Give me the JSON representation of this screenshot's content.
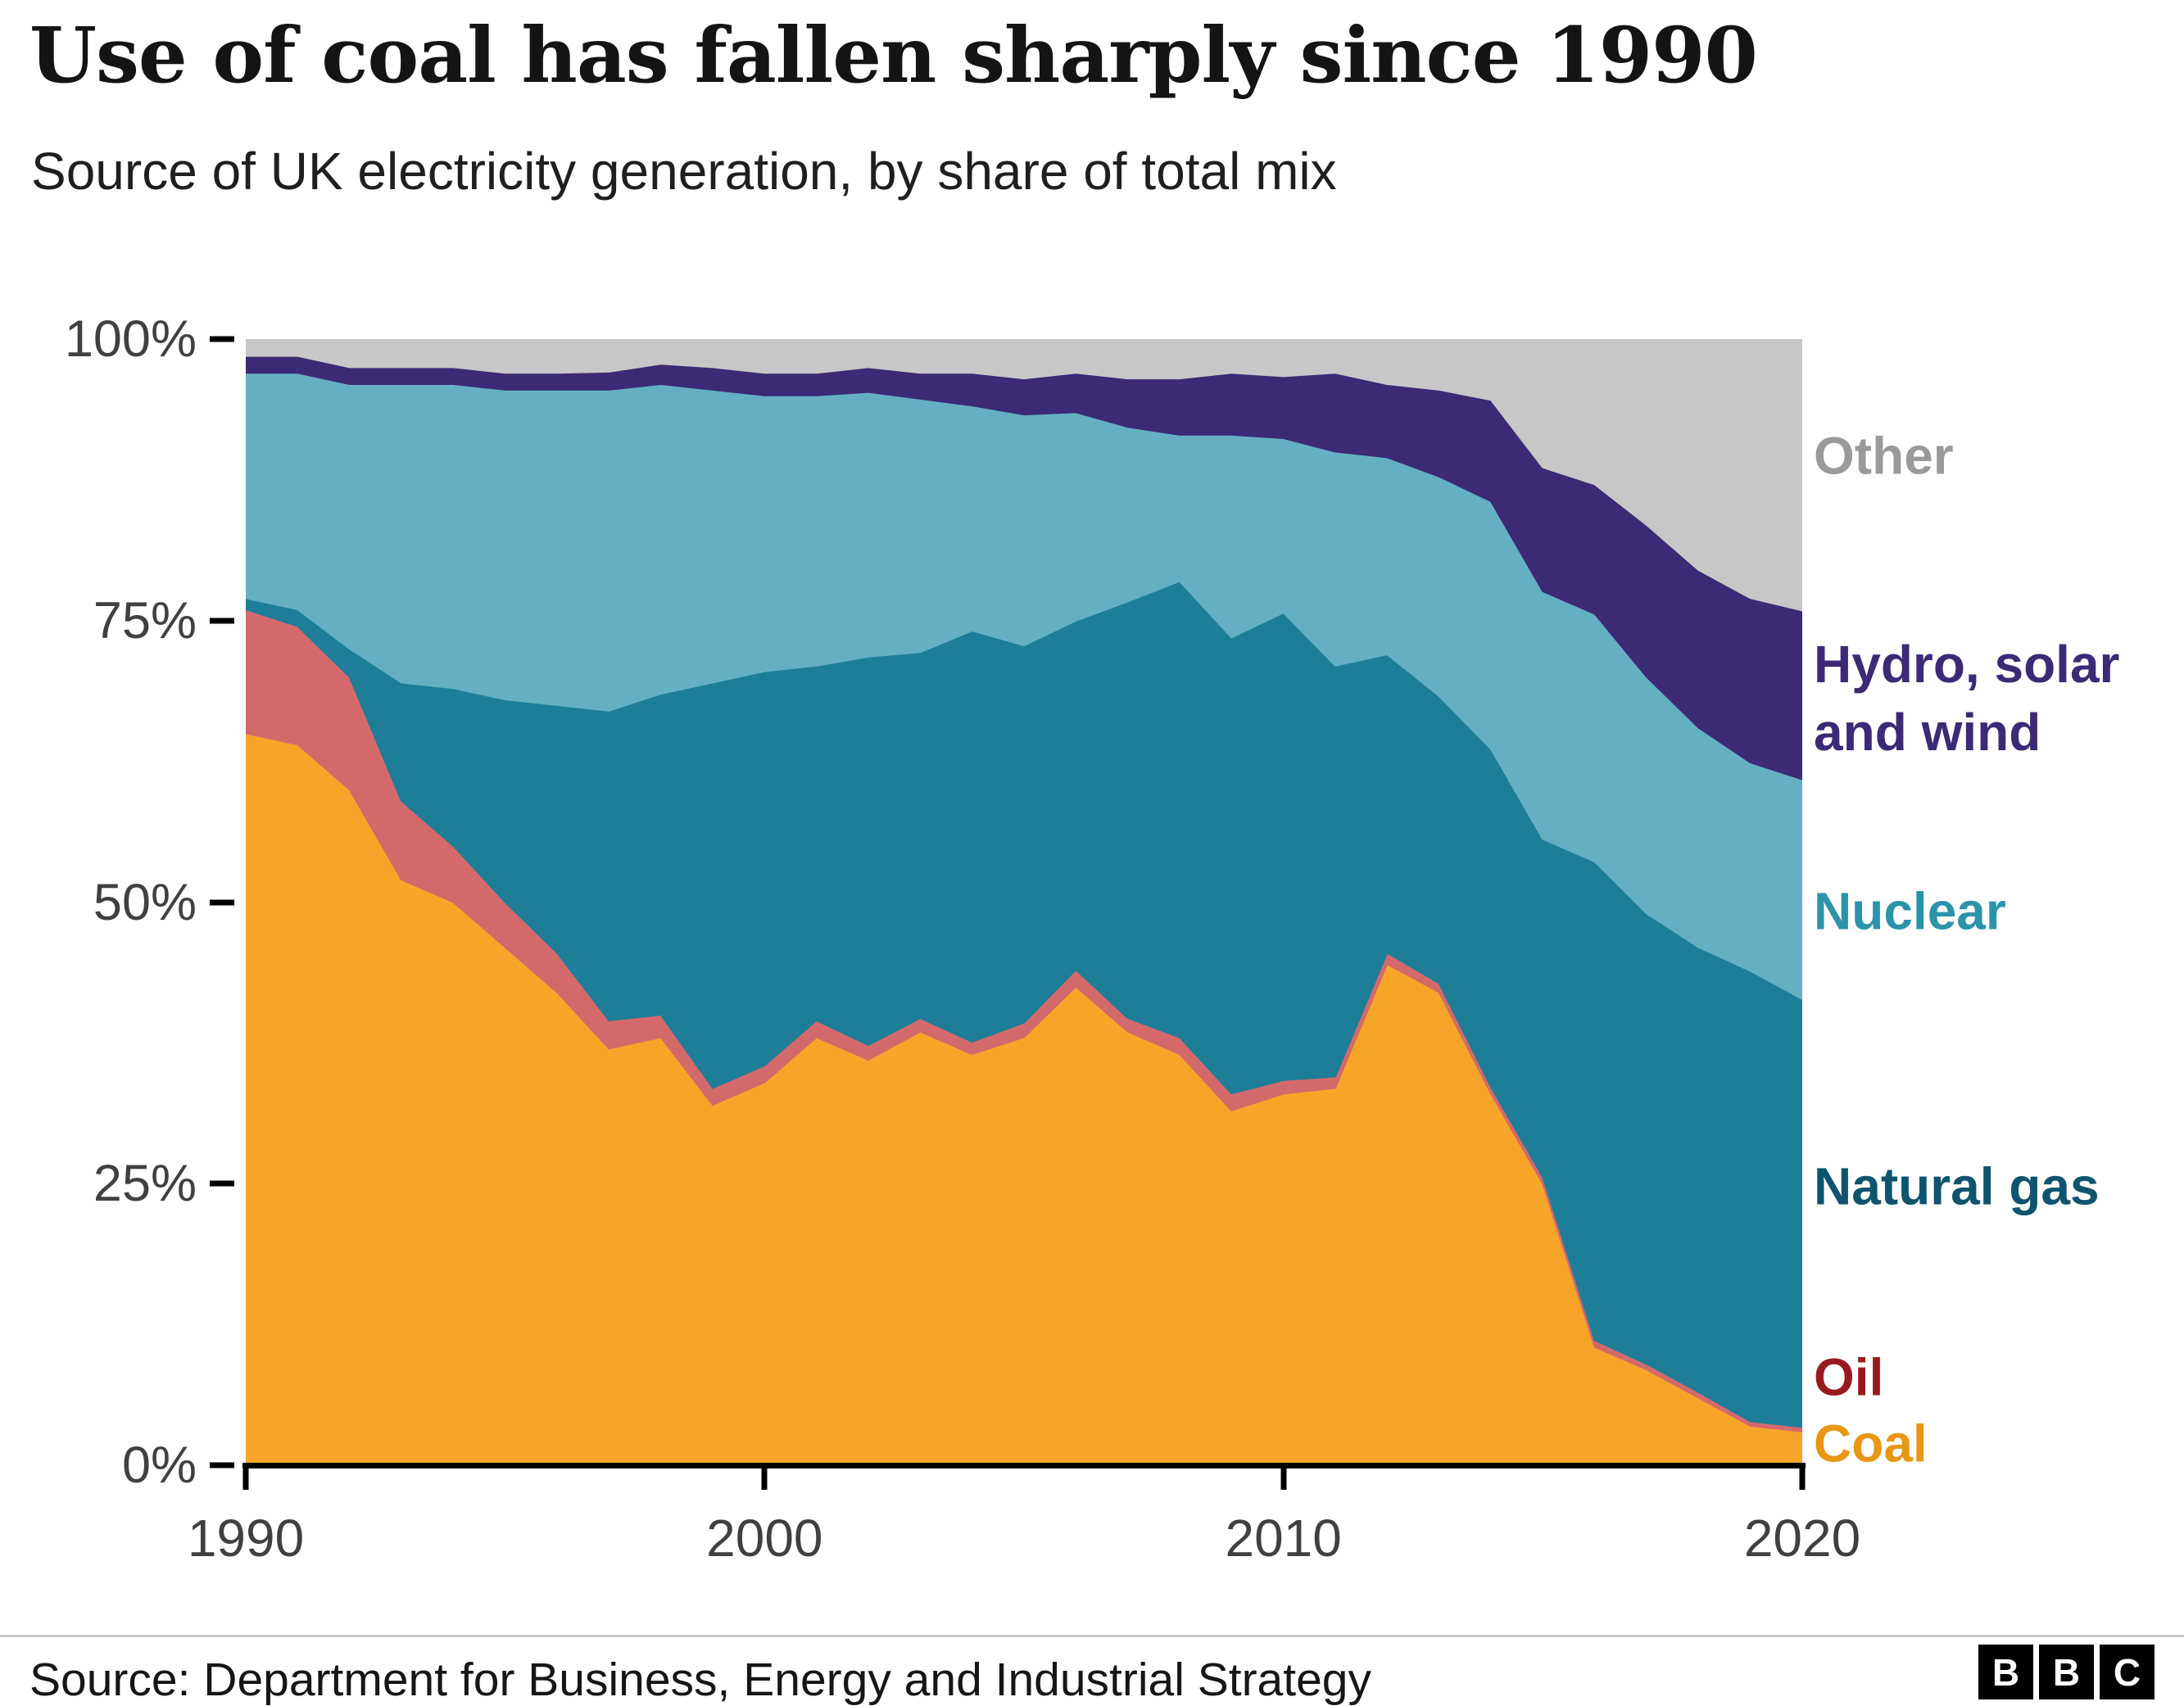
{
  "chart_data": {
    "type": "area",
    "stacked": true,
    "title": "Use of coal has fallen sharply since 1990",
    "subtitle": "Source of UK electricity generation, by share of total mix",
    "unit": "percent share of total mix",
    "xlabel": "",
    "ylabel": "",
    "grid": false,
    "legend_position": "right",
    "ylim": [
      0,
      100
    ],
    "yticks": [
      "0%",
      "25%",
      "50%",
      "75%",
      "100%"
    ],
    "xticks": [
      1990,
      2000,
      2010,
      2020
    ],
    "x": [
      1990,
      1991,
      1992,
      1993,
      1994,
      1995,
      1996,
      1997,
      1998,
      1999,
      2000,
      2001,
      2002,
      2003,
      2004,
      2005,
      2006,
      2007,
      2008,
      2009,
      2010,
      2011,
      2012,
      2013,
      2014,
      2015,
      2016,
      2017,
      2018,
      2019,
      2020
    ],
    "series": [
      {
        "name": "Coal",
        "color": "#F7A528",
        "label_color": "#E89614",
        "values": [
          65,
          64,
          60,
          52,
          50,
          46,
          42,
          37,
          38,
          32,
          34,
          38,
          36,
          38.5,
          36.5,
          38,
          42.5,
          38.5,
          36.5,
          31.5,
          33,
          33.5,
          44.5,
          42,
          33,
          25,
          10.5,
          8.5,
          6,
          3.5,
          3
        ]
      },
      {
        "name": "Oil",
        "color": "#D4696C",
        "label_color": "#991A1E",
        "values": [
          11,
          10.5,
          10,
          7,
          5,
          4,
          3.5,
          2.5,
          2,
          1.5,
          1.5,
          1.5,
          1.3,
          1.2,
          1.1,
          1.3,
          1.5,
          1.2,
          1.5,
          1.5,
          1.2,
          1,
          1,
          0.8,
          0.6,
          0.6,
          0.6,
          0.5,
          0.5,
          0.4,
          0.4
        ]
      },
      {
        "name": "Natural gas",
        "color": "#1E7E98",
        "label_color": "#0E546E",
        "values": [
          1,
          1.5,
          2.5,
          10.5,
          14,
          18,
          22,
          27.5,
          28.5,
          36,
          35,
          31.5,
          34.5,
          32.5,
          36.5,
          33.5,
          31,
          37,
          40.5,
          40.5,
          41.5,
          36.5,
          26.5,
          25.5,
          30,
          30,
          42.5,
          40,
          39.5,
          40,
          38
        ]
      },
      {
        "name": "Nuclear",
        "color": "#64B0C2",
        "label_color": "#2C93A9",
        "values": [
          20,
          21,
          23.5,
          26.5,
          27,
          27.5,
          28,
          28.5,
          27.5,
          26,
          24.5,
          24,
          23.5,
          22.5,
          20,
          20.5,
          18.5,
          15.5,
          13,
          18,
          15.5,
          19,
          17.5,
          19.5,
          22,
          22,
          22,
          21,
          19.5,
          18.5,
          19.5
        ]
      },
      {
        "name": "Hydro, solar and wind",
        "color": "#3C2A76",
        "label_color": "#3C2A76",
        "values": [
          1.5,
          1.5,
          1.5,
          1.5,
          1.5,
          1.5,
          1.5,
          1.6,
          1.8,
          2,
          2,
          2,
          2.2,
          2.3,
          2.9,
          3.2,
          3.5,
          4.3,
          5,
          5.5,
          5.5,
          7,
          6.5,
          7.7,
          9,
          11,
          11.5,
          13.5,
          14,
          14.6,
          15
        ]
      },
      {
        "name": "Other",
        "color": "#C7C7C7",
        "label_color": "#9A9A9A",
        "values": [
          1.5,
          1.5,
          2.5,
          2.5,
          2.5,
          3,
          3,
          2.9,
          2.2,
          2.5,
          3,
          3,
          2.5,
          3,
          3,
          3.5,
          3,
          3.5,
          3.5,
          3,
          3.3,
          3,
          4,
          4.5,
          5.4,
          11.4,
          12.9,
          16.5,
          20.5,
          23,
          24.1
        ]
      }
    ]
  },
  "legend": {
    "other": "Other",
    "hydro": "Hydro, solar\nand wind",
    "nuclear": "Nuclear",
    "gas": "Natural gas",
    "oil": "Oil",
    "coal": "Coal"
  },
  "footer": {
    "source": "Source: Department for Business, Energy and Industrial Strategy",
    "logo_letters": [
      "B",
      "B",
      "C"
    ]
  }
}
